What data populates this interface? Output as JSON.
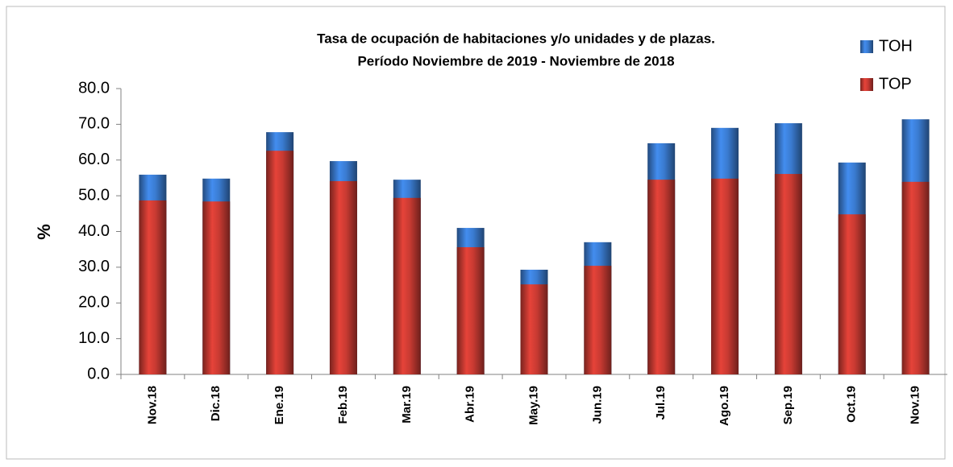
{
  "chart_data": {
    "type": "bar",
    "title": "Tasa  de ocupación de habitaciones y/o unidades y de plazas.",
    "subtitle": "Período Noviembre de 2019 - Noviembre de 2018",
    "y_label": "%",
    "categories": [
      "Nov.18",
      "Dic.18",
      "Ene.19",
      "Feb.19",
      "Mar.19",
      "Abr.19",
      "May.19",
      "Jun.19",
      "Jul.19",
      "Ago.19",
      "Sep.19",
      "Oct.19",
      "Nov.19"
    ],
    "series": [
      {
        "name": "TOH",
        "color": "#3a7bd0",
        "values": [
          55.9,
          54.8,
          67.8,
          59.7,
          54.5,
          41.0,
          29.3,
          37.0,
          64.7,
          69.0,
          70.3,
          59.3,
          71.4
        ]
      },
      {
        "name": "TOP",
        "color": "#c83a32",
        "values": [
          48.7,
          48.4,
          62.6,
          54.1,
          49.4,
          35.6,
          25.2,
          30.4,
          54.5,
          54.8,
          56.1,
          44.8,
          53.9
        ]
      }
    ],
    "ylim": [
      0,
      80
    ],
    "yticks": [
      {
        "value": 0,
        "label": "0.0"
      },
      {
        "value": 10,
        "label": "10.0"
      },
      {
        "value": 20,
        "label": "20.0"
      },
      {
        "value": 30,
        "label": "30.0"
      },
      {
        "value": 40,
        "label": "40.0"
      },
      {
        "value": 50,
        "label": "50.0"
      },
      {
        "value": 60,
        "label": "60.0"
      },
      {
        "value": 70,
        "label": "70.0"
      },
      {
        "value": 80,
        "label": "80.0"
      }
    ],
    "legend": "top-right"
  }
}
